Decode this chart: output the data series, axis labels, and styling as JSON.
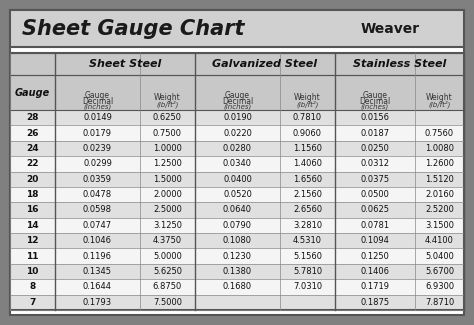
{
  "title": "Sheet Gauge Chart",
  "bg_outer": "#808080",
  "bg_inner": "#ffffff",
  "header_bg": "#d3d3d3",
  "row_bg_even": "#e8e8e8",
  "row_bg_odd": "#ffffff",
  "border_color": "#555555",
  "text_color": "#333333",
  "gauges": [
    28,
    26,
    24,
    22,
    20,
    18,
    16,
    14,
    12,
    11,
    10,
    8,
    7
  ],
  "sheet_steel": [
    [
      "0.0149",
      "0.6250"
    ],
    [
      "0.0179",
      "0.7500"
    ],
    [
      "0.0239",
      "1.0000"
    ],
    [
      "0.0299",
      "1.2500"
    ],
    [
      "0.0359",
      "1.5000"
    ],
    [
      "0.0478",
      "2.0000"
    ],
    [
      "0.0598",
      "2.5000"
    ],
    [
      "0.0747",
      "3.1250"
    ],
    [
      "0.1046",
      "4.3750"
    ],
    [
      "0.1196",
      "5.0000"
    ],
    [
      "0.1345",
      "5.6250"
    ],
    [
      "0.1644",
      "6.8750"
    ],
    [
      "0.1793",
      "7.5000"
    ]
  ],
  "galvanized_steel": [
    [
      "0.0190",
      "0.7810"
    ],
    [
      "0.0220",
      "0.9060"
    ],
    [
      "0.0280",
      "1.1560"
    ],
    [
      "0.0340",
      "1.4060"
    ],
    [
      "0.0400",
      "1.6560"
    ],
    [
      "0.0520",
      "2.1560"
    ],
    [
      "0.0640",
      "2.6560"
    ],
    [
      "0.0790",
      "3.2810"
    ],
    [
      "0.1080",
      "4.5310"
    ],
    [
      "0.1230",
      "5.1560"
    ],
    [
      "0.1380",
      "5.7810"
    ],
    [
      "0.1680",
      "7.0310"
    ],
    [
      "",
      ""
    ]
  ],
  "stainless_steel": [
    [
      "0.0156",
      ""
    ],
    [
      "0.0187",
      "0.7560"
    ],
    [
      "0.0250",
      "1.0080"
    ],
    [
      "0.0312",
      "1.2600"
    ],
    [
      "0.0375",
      "1.5120"
    ],
    [
      "0.0500",
      "2.0160"
    ],
    [
      "0.0625",
      "2.5200"
    ],
    [
      "0.0781",
      "3.1500"
    ],
    [
      "0.1094",
      "4.4100"
    ],
    [
      "0.1250",
      "5.0400"
    ],
    [
      "0.1406",
      "5.6700"
    ],
    [
      "0.1719",
      "6.9300"
    ],
    [
      "0.1875",
      "7.8710"
    ]
  ]
}
